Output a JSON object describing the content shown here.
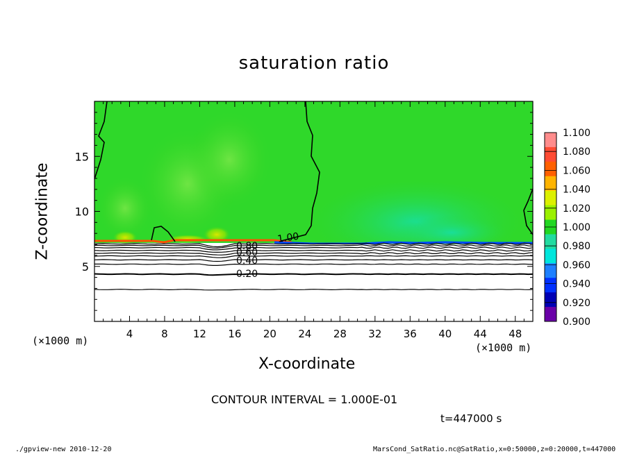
{
  "chart_data": {
    "type": "heatmap",
    "title": "saturation ratio",
    "xlabel": "X-coordinate",
    "ylabel": "Z-coordinate",
    "x_unit": "(×1000 m)",
    "xlim": [
      0,
      50
    ],
    "ylim": [
      0,
      20
    ],
    "x_ticks": [
      4,
      8,
      12,
      16,
      20,
      24,
      28,
      32,
      36,
      40,
      44,
      48
    ],
    "y_ticks": [
      5,
      10,
      15
    ],
    "colorbar": {
      "levels": [
        "1.100",
        "1.080",
        "1.060",
        "1.040",
        "1.020",
        "1.000",
        "0.980",
        "0.960",
        "0.940",
        "0.920",
        "0.900"
      ],
      "colors": [
        "#ff8c8c",
        "#ff4b33",
        "#ff6000",
        "#ffb400",
        "#dcf000",
        "#9bf000",
        "#22d722",
        "#22dba0",
        "#00e6dc",
        "#1e80ff",
        "#0030ff",
        "#0000b4",
        "#6a00a8"
      ]
    },
    "contour_labels": [
      "1.00",
      "0.80",
      "0.60",
      "0.40",
      "0.20"
    ],
    "contour_interval": "CONTOUR INTERVAL = 1.000E-01",
    "time": "t=447000 s"
  },
  "footer": {
    "left": "./gpview-new  2010-12-20",
    "right": "MarsCond_SatRatio.nc@SatRatio,x=0:50000,z=0:20000,t=447000"
  }
}
